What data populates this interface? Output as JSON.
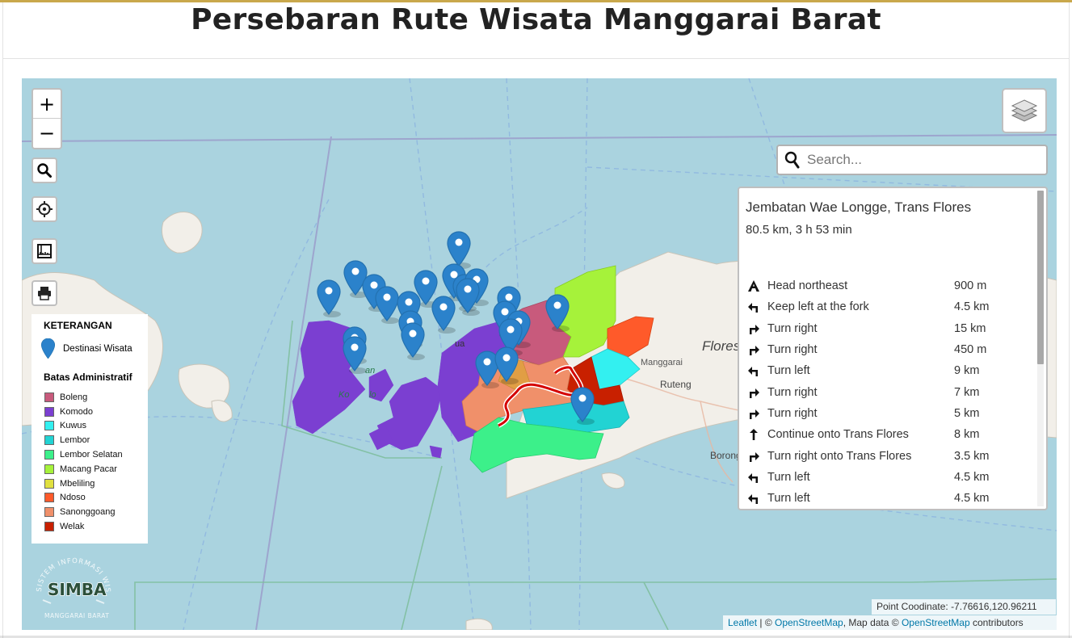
{
  "page": {
    "title": "Persebaran Rute Wisata Manggarai Barat"
  },
  "map": {
    "controls": {
      "zoom_in": "+",
      "zoom_out": "−",
      "search_icon": "search-icon",
      "locate_icon": "crosshair-icon",
      "measure_icon": "ruler-icon",
      "print_icon": "printer-icon",
      "layers_icon": "layers-icon"
    },
    "search": {
      "placeholder": "Search..."
    },
    "labels": {
      "flores": "Flores",
      "manggarai": "Manggarai",
      "ruteng": "Ruteng",
      "borong": "Borong",
      "komodo_1": "an",
      "komodo_2": "Ko",
      "komodo_3": "lo",
      "labuan": "ua"
    },
    "colors": {
      "sea": "#aad3df",
      "land": "#f2efe9",
      "marker": "#2b82cb",
      "route": "#d40000"
    }
  },
  "route": {
    "name": "Jembatan Wae Longge, Trans Flores",
    "summary": "80.5 km, 3 h 53 min",
    "steps": [
      {
        "icon": "depart-icon",
        "text": "Head northeast",
        "distance": "900 m"
      },
      {
        "icon": "turn-left-icon",
        "text": "Keep left at the fork",
        "distance": "4.5 km"
      },
      {
        "icon": "turn-right-icon",
        "text": "Turn right",
        "distance": "15 km"
      },
      {
        "icon": "turn-right-icon",
        "text": "Turn right",
        "distance": "450 m"
      },
      {
        "icon": "turn-left-icon",
        "text": "Turn left",
        "distance": "9 km"
      },
      {
        "icon": "turn-right-icon",
        "text": "Turn right",
        "distance": "7 km"
      },
      {
        "icon": "turn-right-icon",
        "text": "Turn right",
        "distance": "5 km"
      },
      {
        "icon": "continue-icon",
        "text": "Continue onto Trans Flores",
        "distance": "8 km"
      },
      {
        "icon": "turn-right-icon",
        "text": "Turn right onto Trans Flores",
        "distance": "3.5 km"
      },
      {
        "icon": "turn-left-icon",
        "text": "Turn left",
        "distance": "4.5 km"
      },
      {
        "icon": "turn-left-icon",
        "text": "Turn left",
        "distance": "4.5 km"
      }
    ]
  },
  "legend": {
    "title": "KETERANGAN",
    "destination_label": "Destinasi Wisata",
    "admin_title": "Batas Administratif",
    "items": [
      {
        "name": "Boleng",
        "color": "#c85a7c"
      },
      {
        "name": "Komodo",
        "color": "#7b3fd1"
      },
      {
        "name": "Kuwus",
        "color": "#33f0f0"
      },
      {
        "name": "Lembor",
        "color": "#22d3d3"
      },
      {
        "name": "Lembor Selatan",
        "color": "#3cf08a"
      },
      {
        "name": "Macang Pacar",
        "color": "#a6f23a"
      },
      {
        "name": "Mbeliling",
        "color": "#e0e040"
      },
      {
        "name": "Ndoso",
        "color": "#ff5a2a"
      },
      {
        "name": "Sanonggoang",
        "color": "#f0906a"
      },
      {
        "name": "Welak",
        "color": "#c82000"
      }
    ]
  },
  "footer": {
    "coordinate": "Point Coodinate: -7.76616,120.96211",
    "leaflet": "Leaflet",
    "sep1": " | © ",
    "osm1": "OpenStreetMap",
    "mid": ", Map data © ",
    "osm2": "OpenStreetMap",
    "end": " contributors"
  },
  "logo": {
    "text": "SIMBA",
    "arc_top": "SISTEM INFORMASI WISATA",
    "arc_bottom": "MANGGARAI BARAT"
  }
}
